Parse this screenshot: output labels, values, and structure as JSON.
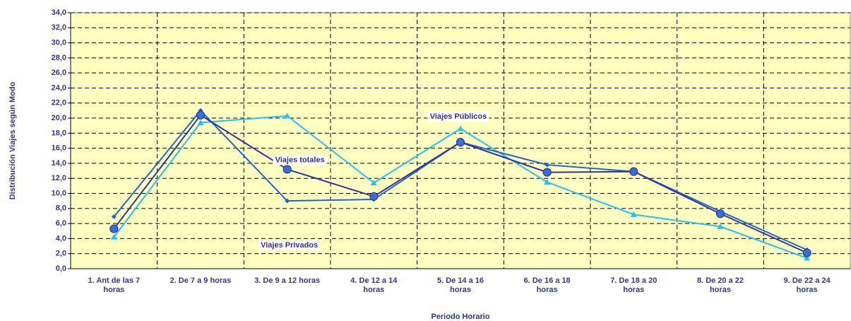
{
  "chart_data": {
    "type": "line",
    "x_label": "Periodo Horario",
    "y_label": "Distribución Viajes según Modo",
    "categories": [
      "1. Ant de las 7 horas",
      "2. De 7 a 9 horas",
      "3. De 9 a 12 horas",
      "4. De 12 a 14 horas",
      "5. De 14 a 16 horas",
      "6. De 16 a 18 horas",
      "7. De 18 a 20 horas",
      "8. De 20 a 22 horas",
      "9. De 22 a 24 horas"
    ],
    "series": [
      {
        "name": "Viajes totales",
        "color": "#333399",
        "marker": "circle",
        "values": [
          5.3,
          20.4,
          13.2,
          9.6,
          16.8,
          12.8,
          12.9,
          7.3,
          2.1
        ]
      },
      {
        "name": "Viajes Privados",
        "color": "#1f66c8",
        "marker": "diamond",
        "values": [
          6.9,
          21.0,
          9.0,
          9.2,
          16.8,
          13.8,
          12.9,
          7.6,
          2.5
        ]
      },
      {
        "name": "Viajes Públicos",
        "color": "#22c4ee",
        "marker": "triangle",
        "values": [
          4.2,
          19.4,
          20.3,
          11.4,
          18.6,
          11.5,
          7.2,
          5.6,
          1.4
        ]
      }
    ],
    "ylim": [
      0,
      34
    ],
    "yticks": [
      {
        "value": 0,
        "label": "0,0"
      },
      {
        "value": 2,
        "label": "2,0"
      },
      {
        "value": 4,
        "label": "4,0"
      },
      {
        "value": 6,
        "label": "6,0"
      },
      {
        "value": 8,
        "label": "8,0"
      },
      {
        "value": 10,
        "label": "10,0"
      },
      {
        "value": 12,
        "label": "12,0"
      },
      {
        "value": 14,
        "label": "14,0"
      },
      {
        "value": 16,
        "label": "16,0"
      },
      {
        "value": 18,
        "label": "18,0"
      },
      {
        "value": 20,
        "label": "20,0"
      },
      {
        "value": 22,
        "label": "22,0"
      },
      {
        "value": 24,
        "label": "24,0"
      },
      {
        "value": 26,
        "label": "26,0"
      },
      {
        "value": 28,
        "label": "28,0"
      },
      {
        "value": 30,
        "label": "30,0"
      },
      {
        "value": 32,
        "label": "32,0"
      },
      {
        "value": 34,
        "label": "34,0"
      }
    ],
    "grid": true
  }
}
